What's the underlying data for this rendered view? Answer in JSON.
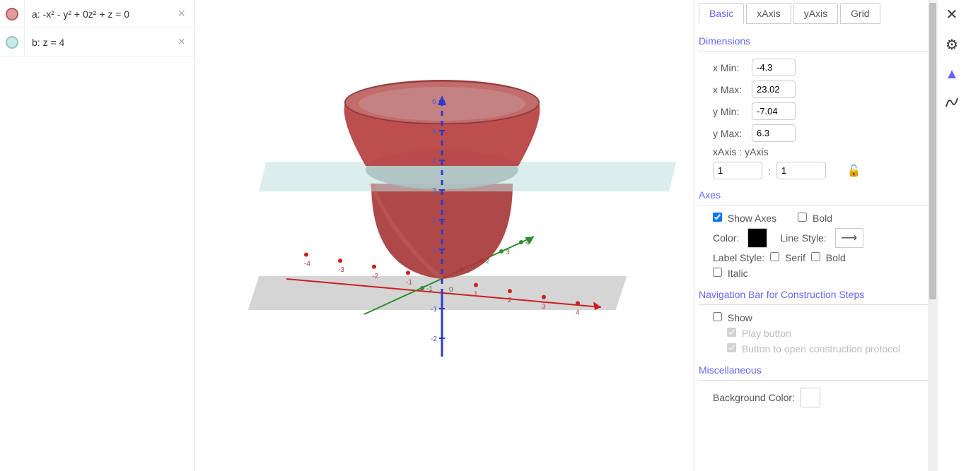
{
  "algebra": {
    "items": [
      {
        "color_fill": "#e29a9a",
        "color_stroke": "#b06060",
        "label": "a: -x² - y² + 0z² + z = 0"
      },
      {
        "color_fill": "#c9e8e6",
        "color_stroke": "#8fc9c5",
        "label": "b: z = 4"
      }
    ]
  },
  "graphics3d": {
    "background": "#ffffff",
    "floor_plane_color": "#b3b3b3",
    "floor_plane_opacity": 0.75,
    "cut_plane_color": "#bde0dd",
    "cut_plane_opacity": 0.7,
    "paraboloid": {
      "color": "#b33939",
      "light": "#c75a5a",
      "dark": "#8f2d2d"
    },
    "x_axis": {
      "color": "#cc1f1f",
      "ticks": [
        -4,
        -3,
        -2,
        -1,
        1,
        2,
        3,
        4
      ],
      "label_color": "#c04040",
      "label_size": 10
    },
    "y_axis": {
      "color": "#2e8b2e",
      "ticks": [
        -1,
        1,
        2,
        3,
        4
      ],
      "label_color": "#3a8a3a",
      "label_size": 10
    },
    "z_axis": {
      "color": "#2b3bcc",
      "ticks_up": [
        1,
        2,
        3,
        4,
        5,
        6
      ],
      "ticks_down": [
        -1,
        -2
      ],
      "label_color": "#4a5acc",
      "label_size": 10
    }
  },
  "settings": {
    "tabs": [
      "Basic",
      "xAxis",
      "yAxis",
      "Grid"
    ],
    "active_tab": 0,
    "dimensions": {
      "title": "Dimensions",
      "xmin_label": "x Min:",
      "xmin": "-4.3",
      "xmax_label": "x Max:",
      "xmax": "23.02",
      "ymin_label": "y Min:",
      "ymin": "-7.04",
      "ymax_label": "y Max:",
      "ymax": "6.3",
      "ratio_label": "xAxis : yAxis",
      "ratio_x": "1",
      "ratio_y": "1"
    },
    "axes": {
      "title": "Axes",
      "show_axes": "Show Axes",
      "show_axes_checked": true,
      "bold": "Bold",
      "bold_checked": false,
      "color_label": "Color:",
      "color": "#000000",
      "line_style_label": "Line Style:",
      "label_style_label": "Label Style:",
      "serif": "Serif",
      "serif_checked": false,
      "bold2": "Bold",
      "bold2_checked": false,
      "italic": "Italic",
      "italic_checked": false
    },
    "nav": {
      "title": "Navigation Bar for Construction Steps",
      "show": "Show",
      "show_checked": false,
      "play": "Play button",
      "play_checked": true,
      "protocol": "Button to open construction protocol",
      "protocol_checked": true
    },
    "misc": {
      "title": "Miscellaneous",
      "bg_label": "Background Color:",
      "bg_color": "#ffffff"
    }
  }
}
